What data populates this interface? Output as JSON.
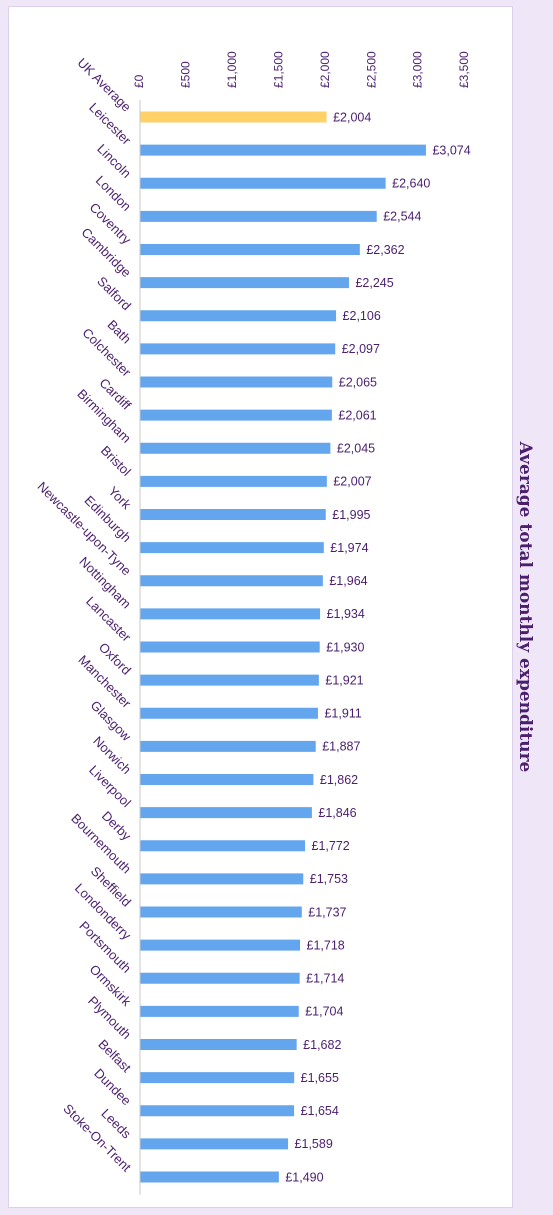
{
  "chart_data": {
    "type": "bar",
    "orientation": "horizontal",
    "title": "Average total monthly expenditure",
    "categories": [
      "UK Average",
      "Leicester",
      "Lincoln",
      "London",
      "Coventry",
      "Cambridge",
      "Salford",
      "Bath",
      "Colchester",
      "Cardiff",
      "Birmingham",
      "Bristol",
      "York",
      "Edinburgh",
      "Newcastle-upon-Tyne",
      "Nottingham",
      "Lancaster",
      "Oxford",
      "Manchester",
      "Glasgow",
      "Norwich",
      "Liverpool",
      "Derby",
      "Bournemouth",
      "Sheffield",
      "Londonderry",
      "Portsmouth",
      "Ormskirk",
      "Plymouth",
      "Belfast",
      "Dundee",
      "Leeds",
      "Stoke-On-Trent"
    ],
    "values": [
      2004,
      3074,
      2640,
      2544,
      2362,
      2245,
      2106,
      2097,
      2065,
      2061,
      2045,
      2007,
      1995,
      1974,
      1964,
      1934,
      1930,
      1921,
      1911,
      1887,
      1862,
      1846,
      1772,
      1753,
      1737,
      1718,
      1714,
      1704,
      1682,
      1655,
      1654,
      1589,
      1490
    ],
    "value_labels": [
      "£2,004",
      "£3,074",
      "£2,640",
      "£2,544",
      "£2,362",
      "£2,245",
      "£2,106",
      "£2,097",
      "£2,065",
      "£2,061",
      "£2,045",
      "£2,007",
      "£1,995",
      "£1,974",
      "£1,964",
      "£1,934",
      "£1,930",
      "£1,921",
      "£1,911",
      "£1,887",
      "£1,862",
      "£1,846",
      "£1,772",
      "£1,753",
      "£1,737",
      "£1,718",
      "£1,714",
      "£1,704",
      "£1,682",
      "£1,655",
      "£1,654",
      "£1,589",
      "£1,490"
    ],
    "ticks": [
      0,
      500,
      1000,
      1500,
      2000,
      2500,
      3000,
      3500
    ],
    "tick_labels": [
      "£0",
      "£500",
      "£1,000",
      "£1,500",
      "£2,000",
      "£2,500",
      "£3,000",
      "£3,500"
    ],
    "xlim": [
      0,
      3500
    ],
    "axis_position": "top",
    "grid": false,
    "legend": "none",
    "highlight_category": "UK Average",
    "colors": {
      "bar": "#64a6ee",
      "highlight": "#ffd166",
      "text": "#4b1f6e",
      "axis": "#c8c8c8"
    }
  }
}
